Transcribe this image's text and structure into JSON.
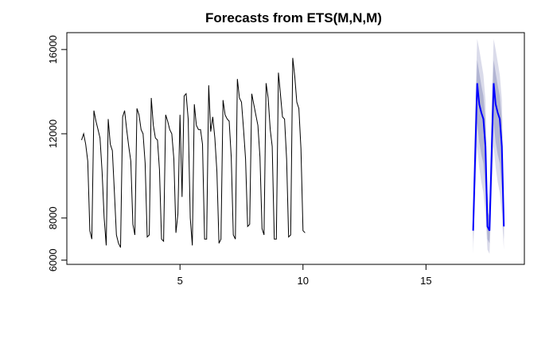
{
  "chart_data": {
    "type": "line",
    "title": "Forecasts from ETS(M,N,M)",
    "xlabel": "",
    "ylabel": "",
    "xlim": [
      0.4,
      19.0
    ],
    "ylim": [
      5800,
      16800
    ],
    "x_ticks": [
      5,
      10,
      15
    ],
    "x_tick_labels": [
      "5",
      "10",
      "15"
    ],
    "y_ticks": [
      6000,
      8000,
      12000,
      16000
    ],
    "y_tick_labels": [
      "6000",
      "8000",
      "12000",
      "16000"
    ],
    "grid": false,
    "legend": "none",
    "colors": {
      "history": "#000000",
      "forecast": "#0000ff",
      "band_95": "#dadbea",
      "band_80": "#b1b4d2"
    },
    "history_start": 1.0,
    "history_step": 0.0833333,
    "history": [
      11700,
      12000,
      11500,
      10700,
      7400,
      7000,
      13100,
      12600,
      12200,
      11800,
      10200,
      8000,
      6700,
      12700,
      11500,
      11200,
      9200,
      7200,
      6800,
      6600,
      12800,
      13100,
      12200,
      11400,
      10700,
      7700,
      7200,
      13200,
      12900,
      12200,
      12000,
      10600,
      7100,
      7200,
      13700,
      12400,
      11800,
      11700,
      10300,
      7000,
      6900,
      12900,
      12600,
      12200,
      12000,
      10800,
      7300,
      8200,
      12900,
      9000,
      13800,
      13900,
      12700,
      8000,
      6700,
      13400,
      12400,
      12200,
      12200,
      11500,
      7000,
      7000,
      14300,
      12100,
      12800,
      11800,
      10200,
      6800,
      7000,
      13600,
      12900,
      12700,
      12600,
      10900,
      7200,
      7000,
      14600,
      13700,
      13500,
      12200,
      10800,
      7600,
      7700,
      13900,
      13400,
      12900,
      12400,
      10900,
      7500,
      7200,
      14400,
      13700,
      12200,
      11400,
      7000,
      7000,
      14900,
      13900,
      12800,
      12700,
      10800,
      7100,
      7200,
      15600,
      14700,
      13500,
      13200,
      11300,
      7400,
      7300
    ],
    "forecast_start": 16.9166667,
    "forecast_step": 0.0833333,
    "forecast": [
      7400,
      11000,
      14400,
      13400,
      13000,
      12700,
      11400,
      7600,
      7400,
      11000,
      14400,
      13400,
      13000,
      12700,
      11400,
      7600
    ],
    "lower_95": [
      6300,
      9000,
      11400,
      10400,
      9700,
      9200,
      8200,
      6500,
      6300,
      9000,
      11400,
      10400,
      9700,
      9200,
      8200,
      6500
    ],
    "upper_95": [
      8600,
      13300,
      16500,
      16000,
      15400,
      14800,
      13600,
      9200,
      8600,
      13300,
      16500,
      16000,
      15400,
      14800,
      13600,
      9200
    ],
    "lower_80": [
      6800,
      9800,
      12500,
      11600,
      11000,
      10600,
      9400,
      7000,
      6800,
      9800,
      12500,
      11600,
      11000,
      10600,
      9400,
      7000
    ],
    "upper_80": [
      8100,
      12300,
      15500,
      14900,
      14300,
      13800,
      12600,
      8300,
      8100,
      12300,
      15500,
      14900,
      14300,
      13800,
      12600,
      8300
    ]
  }
}
